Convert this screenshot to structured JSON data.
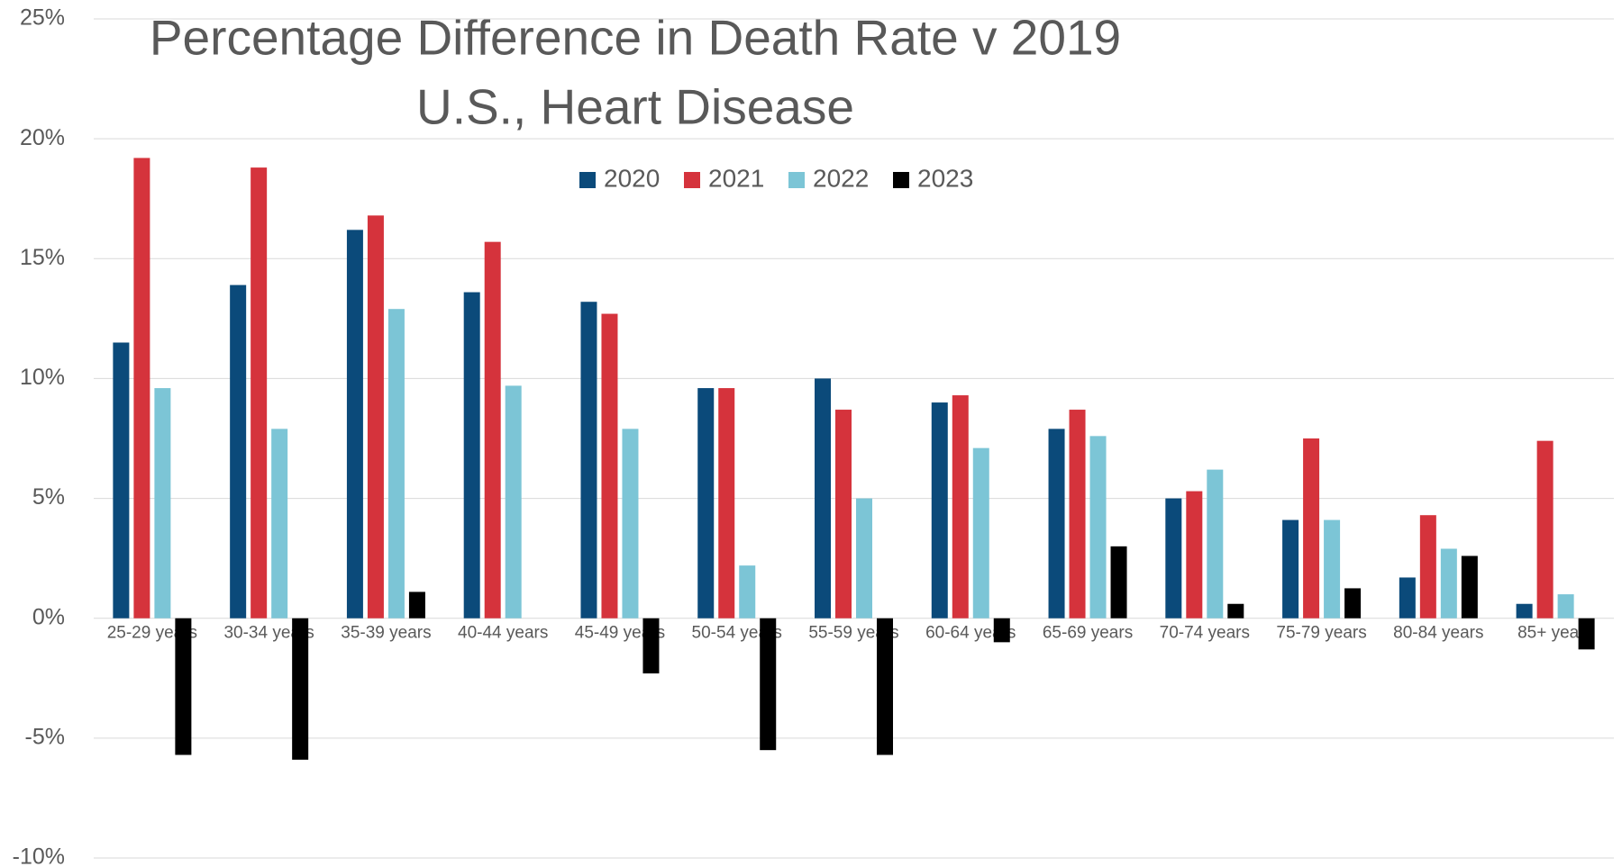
{
  "chart_data": {
    "type": "bar",
    "title": [
      "Percentage Difference in Death Rate v 2019",
      "U.S., Heart Disease"
    ],
    "categories": [
      "25-29 years",
      "30-34 years",
      "35-39 years",
      "40-44 years",
      "45-49 years",
      "50-54 years",
      "55-59 years",
      "60-64 years",
      "65-69 years",
      "70-74 years",
      "75-79 years",
      "80-84 years",
      "85+ years"
    ],
    "series": [
      {
        "name": "2020",
        "color": "#0b4a7a",
        "values": [
          11.5,
          13.9,
          16.2,
          13.6,
          13.2,
          9.6,
          10.0,
          9.0,
          7.9,
          5.0,
          4.1,
          1.7,
          0.6
        ]
      },
      {
        "name": "2021",
        "color": "#d5333c",
        "values": [
          19.2,
          18.8,
          16.8,
          15.7,
          12.7,
          9.6,
          8.7,
          9.3,
          8.7,
          5.3,
          7.5,
          4.3,
          7.4
        ]
      },
      {
        "name": "2022",
        "color": "#7cc5d6",
        "values": [
          9.6,
          7.9,
          12.9,
          9.7,
          7.9,
          2.2,
          5.0,
          7.1,
          7.6,
          6.2,
          4.1,
          2.9,
          1.0
        ]
      },
      {
        "name": "2023",
        "color": "#000000",
        "values": [
          -5.7,
          -5.9,
          1.1,
          0,
          -2.3,
          -5.5,
          -5.7,
          -1.0,
          3.0,
          0.6,
          1.25,
          2.6,
          -1.3
        ]
      }
    ],
    "ylim": [
      -10,
      25
    ],
    "yticks": [
      {
        "value": -10,
        "label": "-10%"
      },
      {
        "value": -5,
        "label": "-5%"
      },
      {
        "value": 0,
        "label": "0%"
      },
      {
        "value": 5,
        "label": "5%"
      },
      {
        "value": 10,
        "label": "10%"
      },
      {
        "value": 15,
        "label": "15%"
      },
      {
        "value": 20,
        "label": "20%"
      },
      {
        "value": 25,
        "label": "25%"
      }
    ],
    "grid": true,
    "legend": "top"
  }
}
